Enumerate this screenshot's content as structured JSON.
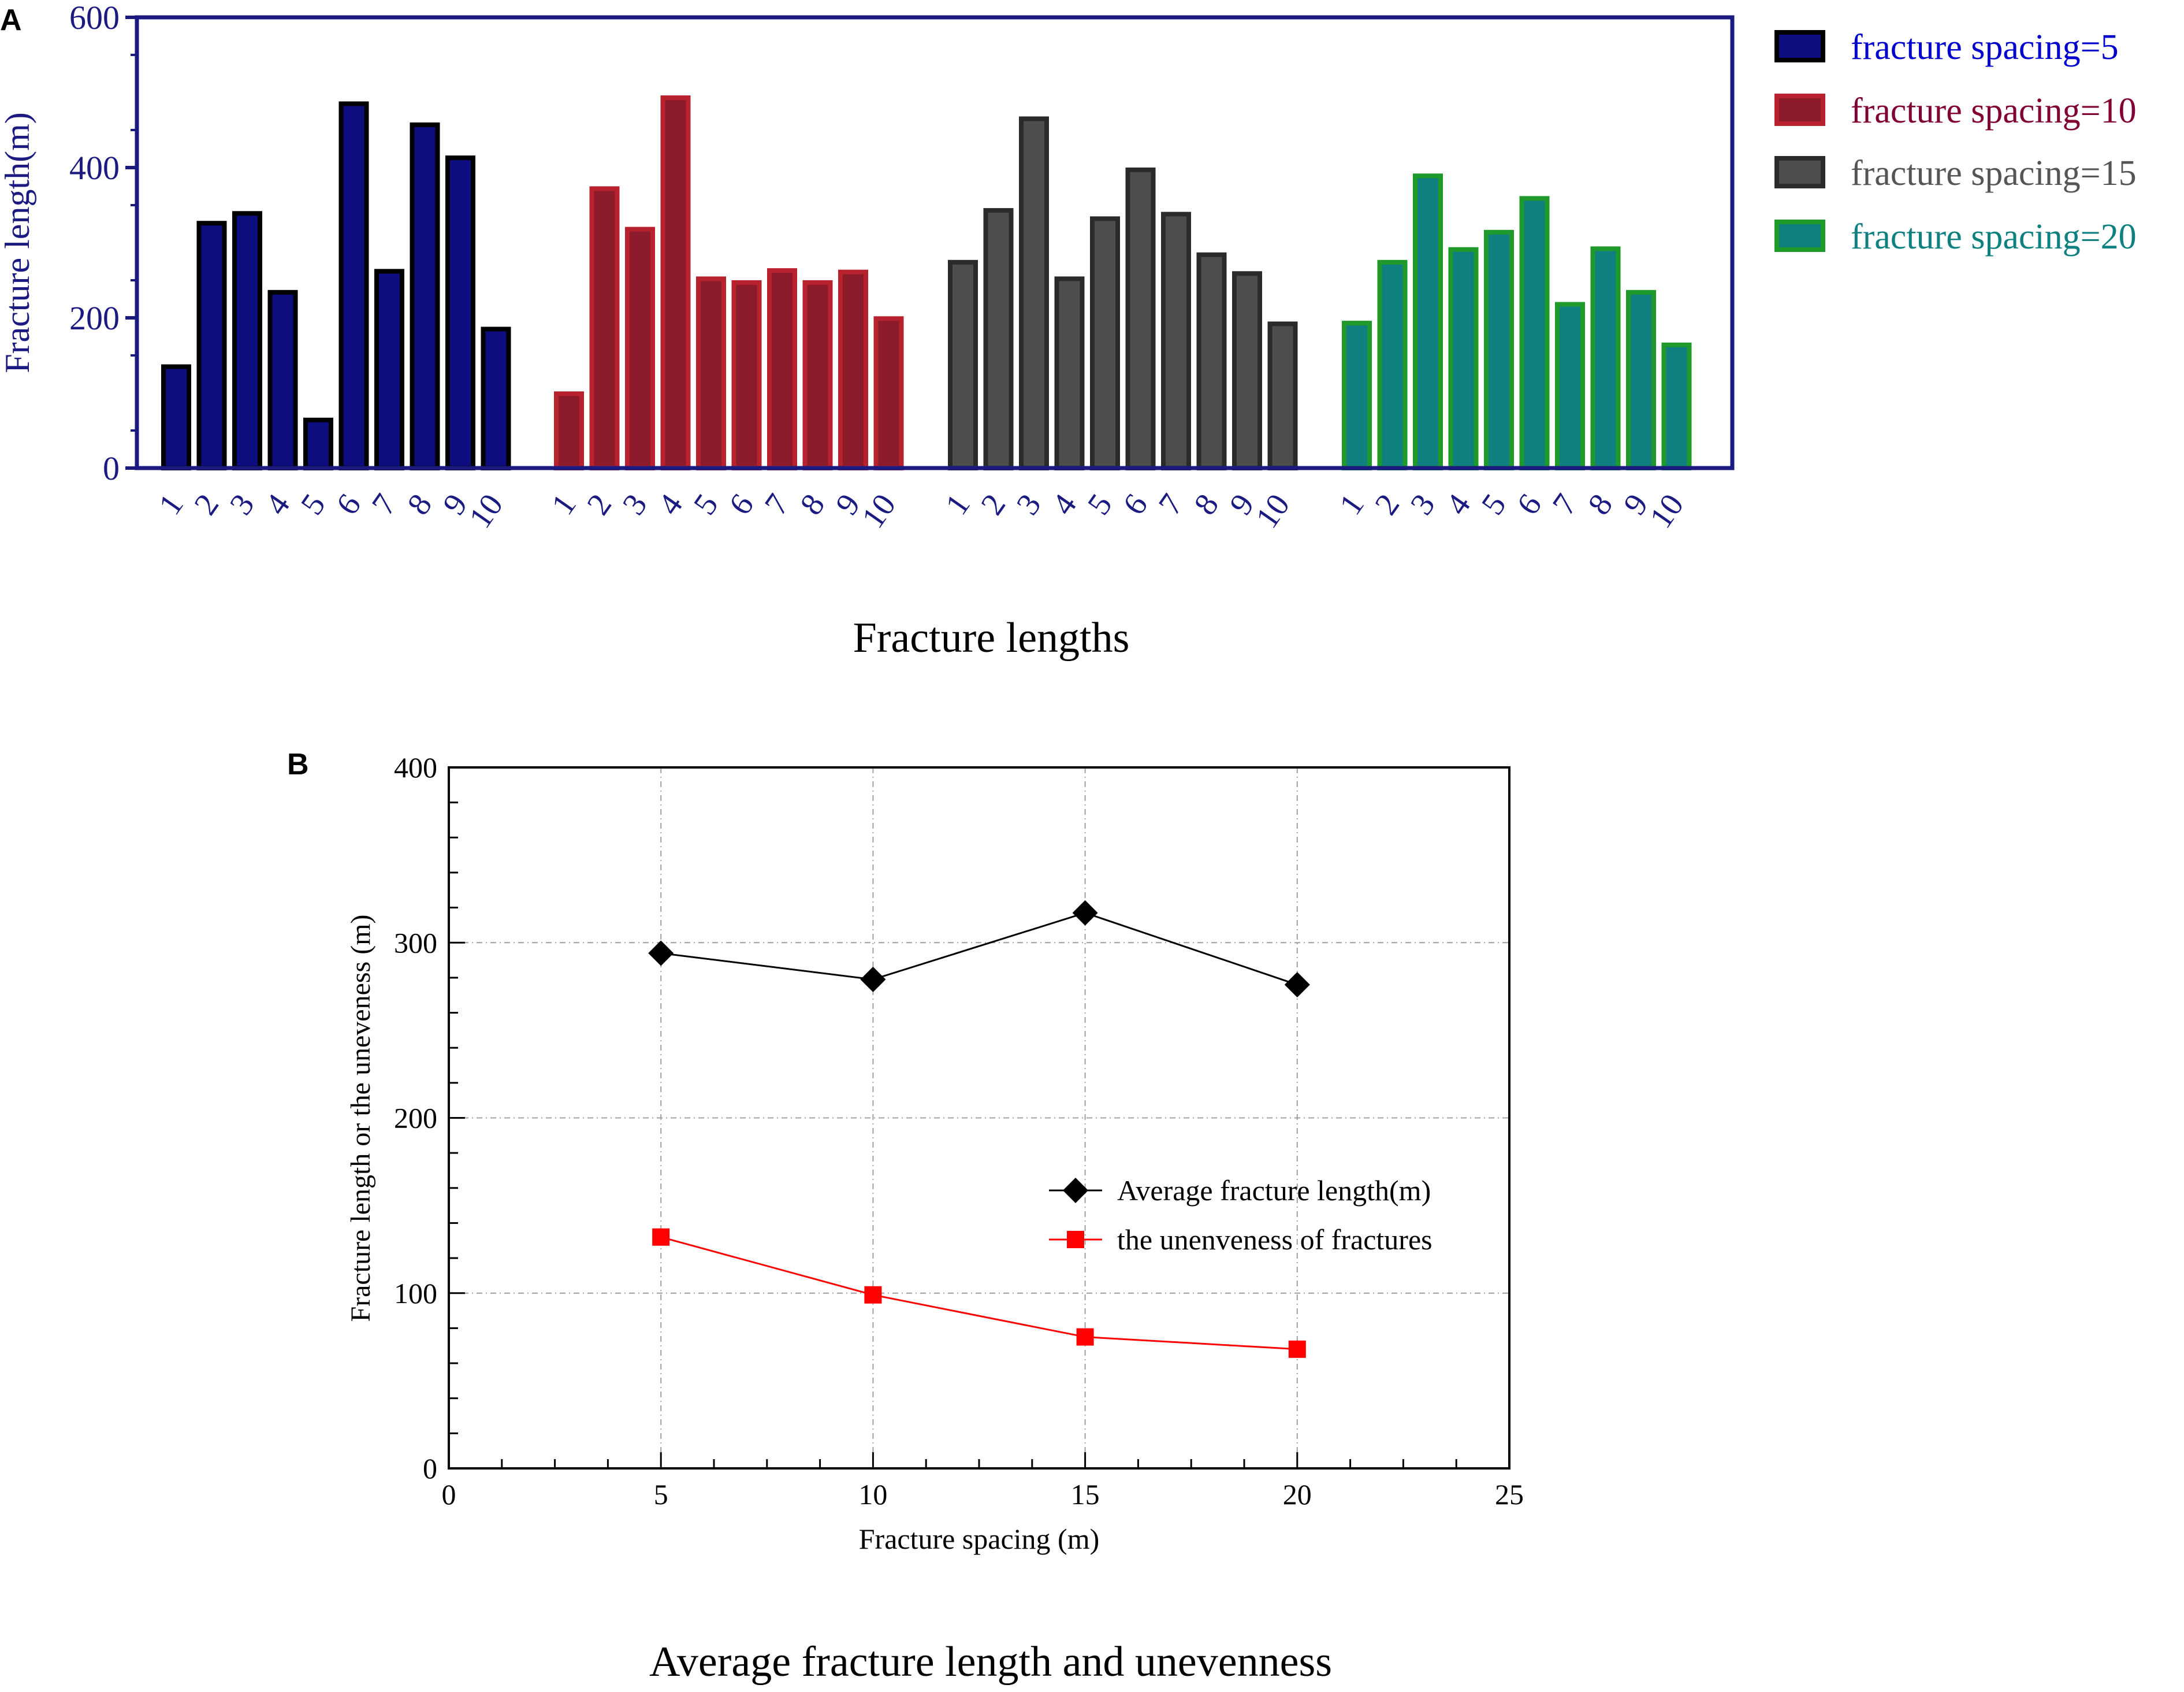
{
  "colors": {
    "a_axis": "#1a1a80",
    "b_axis": "#000000",
    "grid": "#a0a0a0",
    "avg_line": "#000000",
    "uneven_line": "#ff0000"
  },
  "panel_a": {
    "label": "A",
    "caption": "Fracture lengths"
  },
  "panel_b": {
    "label": "B",
    "caption": "Average fracture length and unevenness"
  },
  "chart_data": [
    {
      "type": "bar",
      "panel": "A",
      "title": "",
      "xlabel": "",
      "ylabel": "Fracture length(m)",
      "ylim": [
        0,
        600
      ],
      "yticks": [
        0,
        200,
        400,
        600
      ],
      "categories": [
        "1",
        "2",
        "3",
        "4",
        "5",
        "6",
        "7",
        "8",
        "9",
        "10"
      ],
      "legend_position": "outside-right",
      "series": [
        {
          "name": "fracture spacing=5",
          "fill": "#0d0d80",
          "stroke": "#000000",
          "text_color": "#0000cc",
          "values": [
            135,
            326,
            339,
            234,
            64,
            485,
            262,
            457,
            413,
            185
          ]
        },
        {
          "name": "fracture spacing=10",
          "fill": "#8b1a2a",
          "stroke": "#b8222e",
          "text_color": "#800033",
          "values": [
            99,
            372,
            318,
            493,
            252,
            247,
            263,
            247,
            261,
            199
          ]
        },
        {
          "name": "fracture spacing=15",
          "fill": "#4d4d4d",
          "stroke": "#2a2a2a",
          "text_color": "#555555",
          "values": [
            274,
            343,
            465,
            252,
            332,
            397,
            338,
            284,
            259,
            192
          ]
        },
        {
          "name": "fracture spacing=20",
          "fill": "#0f7f7f",
          "stroke": "#1f9a2a",
          "text_color": "#0f8080",
          "values": [
            193,
            274,
            389,
            291,
            314,
            359,
            218,
            292,
            234,
            164
          ]
        }
      ]
    },
    {
      "type": "line",
      "panel": "B",
      "title": "",
      "xlabel": "Fracture spacing (m)",
      "ylabel": "Fracture length or the uneveness (m)",
      "xlim": [
        0,
        25
      ],
      "ylim": [
        0,
        400
      ],
      "xticks": [
        0,
        5,
        10,
        15,
        20,
        25
      ],
      "yticks": [
        0,
        100,
        200,
        300,
        400
      ],
      "grid": true,
      "legend_position": "center-right",
      "x": [
        5,
        10,
        15,
        20
      ],
      "series": [
        {
          "name": "Average fracture length(m)",
          "marker": "diamond",
          "color": "#000000",
          "values": [
            294,
            279,
            317,
            276
          ]
        },
        {
          "name": "the unenveness of fractures",
          "marker": "square",
          "color": "#ff0000",
          "values": [
            132,
            99,
            75,
            68
          ]
        }
      ]
    }
  ]
}
